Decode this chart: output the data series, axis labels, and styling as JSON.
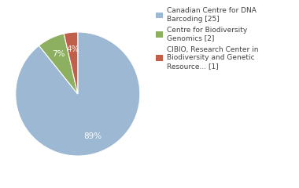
{
  "slices": [
    25,
    2,
    1
  ],
  "colors": [
    "#9db8d2",
    "#8db060",
    "#c0604a"
  ],
  "legend_labels": [
    "Canadian Centre for DNA\nBarcoding [25]",
    "Centre for Biodiversity\nGenomics [2]",
    "CIBIO, Research Center in\nBiodiversity and Genetic\nResource... [1]"
  ],
  "startangle": 90,
  "background_color": "#ffffff",
  "text_color": "#404040",
  "pct_fontsize": 7.5,
  "legend_fontsize": 6.5
}
